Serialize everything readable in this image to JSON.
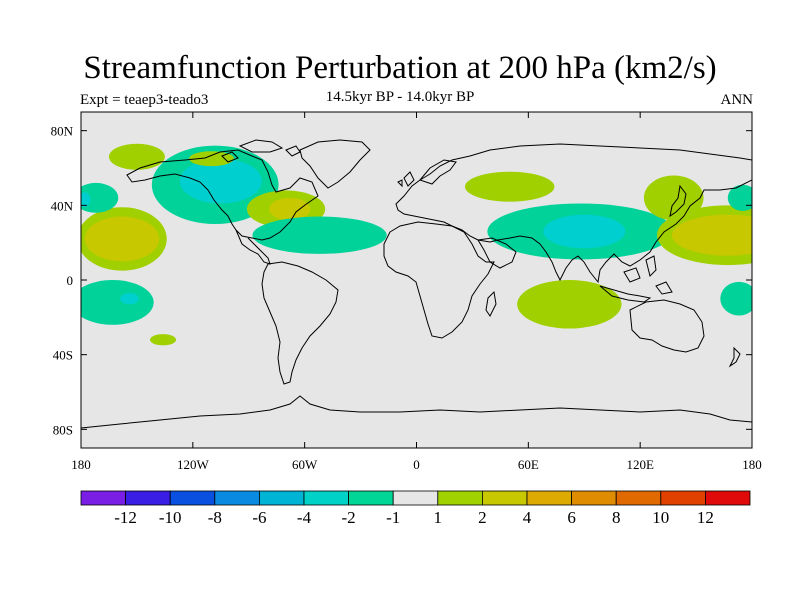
{
  "header": {
    "title": "Streamfunction Perturbation at 200 hPa (km2/s)",
    "subtitle": "14.5kyr BP - 14.0kyr BP",
    "left_string": "Expt = teaep3-teado3",
    "right_string": "ANN"
  },
  "map": {
    "projection": "cylindrical equidistant",
    "lon_range": [
      -180,
      180
    ],
    "lat_range": [
      -90,
      90
    ],
    "background_color": "#e6e6e6",
    "coastline_color": "#000000",
    "x_ticks": [
      {
        "lon": -180,
        "label": "180"
      },
      {
        "lon": -120,
        "label": "120W"
      },
      {
        "lon": -60,
        "label": "60W"
      },
      {
        "lon": 0,
        "label": "0"
      },
      {
        "lon": 60,
        "label": "60E"
      },
      {
        "lon": 120,
        "label": "120E"
      },
      {
        "lon": 180,
        "label": "180"
      }
    ],
    "y_ticks": [
      {
        "lat": 80,
        "label": "80N"
      },
      {
        "lat": 40,
        "label": "40N"
      },
      {
        "lat": 0,
        "label": "0"
      },
      {
        "lat": -40,
        "label": "40S"
      },
      {
        "lat": -80,
        "label": "80S"
      }
    ],
    "contour_regions": [
      {
        "name": "north-atlantic-negative",
        "center": [
          -108,
          51
        ],
        "radius": [
          34,
          21
        ],
        "level": -2,
        "color": "#00d29a"
      },
      {
        "name": "north-atlantic-negative-core",
        "center": [
          -105,
          53
        ],
        "radius": [
          22,
          12
        ],
        "level": -4,
        "color": "#00cfcf"
      },
      {
        "name": "arctic-positive",
        "center": [
          -150,
          66
        ],
        "radius": [
          15,
          7
        ],
        "level": 2,
        "color": "#a0d000"
      },
      {
        "name": "canada-positive",
        "center": [
          -110,
          65
        ],
        "radius": [
          12,
          4
        ],
        "level": 2,
        "color": "#a0d000"
      },
      {
        "name": "pacific-east-positive",
        "center": [
          -158,
          22
        ],
        "radius": [
          24,
          17
        ],
        "level": 2,
        "color": "#a0d000"
      },
      {
        "name": "pacific-east-positive-core",
        "center": [
          -158,
          22
        ],
        "radius": [
          20,
          12
        ],
        "level": 4,
        "color": "#c8c800"
      },
      {
        "name": "pacific-north-negative",
        "center": [
          -172,
          44
        ],
        "radius": [
          12,
          8
        ],
        "level": -2,
        "color": "#00d29a"
      },
      {
        "name": "pacific-north-negative-core",
        "center": [
          -178,
          43
        ],
        "radius": [
          3,
          4
        ],
        "level": -4,
        "color": "#00cfcf"
      },
      {
        "name": "pacific-south-negative",
        "center": [
          -163,
          -12
        ],
        "radius": [
          22,
          12
        ],
        "level": -2,
        "color": "#00d29a"
      },
      {
        "name": "pacific-south-negative-core",
        "center": [
          -154,
          -10
        ],
        "radius": [
          5,
          3
        ],
        "level": -4,
        "color": "#00cfcf"
      },
      {
        "name": "south-pacific-positive",
        "center": [
          -136,
          -32
        ],
        "radius": [
          7,
          3
        ],
        "level": 2,
        "color": "#a0d000"
      },
      {
        "name": "atlantic-positive",
        "center": [
          -70,
          38
        ],
        "radius": [
          21,
          10
        ],
        "level": 2,
        "color": "#a0d000"
      },
      {
        "name": "atlantic-positive-core",
        "center": [
          -68,
          38
        ],
        "radius": [
          11,
          6
        ],
        "level": 4,
        "color": "#c8c800"
      },
      {
        "name": "tropical-atlantic-negative",
        "center": [
          -52,
          24
        ],
        "radius": [
          36,
          10
        ],
        "level": -2,
        "color": "#00d29a"
      },
      {
        "name": "europe-positive",
        "center": [
          50,
          50
        ],
        "radius": [
          24,
          8
        ],
        "level": 2,
        "color": "#a0d000"
      },
      {
        "name": "asia-negative",
        "center": [
          88,
          26
        ],
        "radius": [
          50,
          15
        ],
        "level": -2,
        "color": "#00d29a"
      },
      {
        "name": "asia-negative-core",
        "center": [
          90,
          26
        ],
        "radius": [
          22,
          9
        ],
        "level": -4,
        "color": "#00cfcf"
      },
      {
        "name": "indian-ocean-positive",
        "center": [
          82,
          -13
        ],
        "radius": [
          28,
          13
        ],
        "level": 2,
        "color": "#a0d000"
      },
      {
        "name": "japan-positive",
        "center": [
          138,
          44
        ],
        "radius": [
          16,
          12
        ],
        "level": 2,
        "color": "#a0d000"
      },
      {
        "name": "west-pacific-positive",
        "center": [
          167,
          24
        ],
        "radius": [
          38,
          16
        ],
        "level": 2,
        "color": "#a0d000"
      },
      {
        "name": "west-pacific-positive-core",
        "center": [
          167,
          24
        ],
        "radius": [
          30,
          11
        ],
        "level": 4,
        "color": "#c8c800"
      },
      {
        "name": "west-pacific-north-negative",
        "center": [
          175,
          44
        ],
        "radius": [
          8,
          7
        ],
        "level": -2,
        "color": "#00d29a"
      },
      {
        "name": "west-pacific-south-negative",
        "center": [
          173,
          -10
        ],
        "radius": [
          10,
          9
        ],
        "level": -2,
        "color": "#00d29a"
      }
    ]
  },
  "colorbar": {
    "boxes": [
      {
        "color": "#7a1ee6"
      },
      {
        "color": "#3a1ee6"
      },
      {
        "color": "#0a50e0"
      },
      {
        "color": "#0a8ae0"
      },
      {
        "color": "#00b4d6"
      },
      {
        "color": "#00d2c8"
      },
      {
        "color": "#00d696"
      },
      {
        "color": "#e6e6e6"
      },
      {
        "color": "#a0d200"
      },
      {
        "color": "#c8c800"
      },
      {
        "color": "#dcaa00"
      },
      {
        "color": "#e08c00"
      },
      {
        "color": "#e06a00"
      },
      {
        "color": "#e04000"
      },
      {
        "color": "#e00a0a"
      }
    ],
    "labels": [
      "-12",
      "-10",
      "-8",
      "-6",
      "-4",
      "-2",
      "-1",
      "1",
      "2",
      "4",
      "6",
      "8",
      "10",
      "12"
    ]
  }
}
